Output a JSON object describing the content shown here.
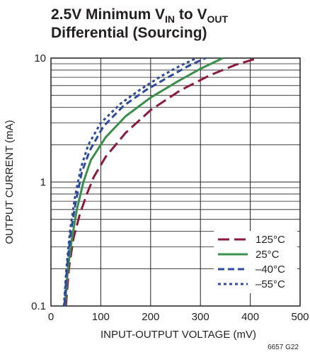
{
  "title": {
    "line1_prefix": "2.5V Minimum V",
    "line1_sub1": "IN",
    "line1_mid": " to V",
    "line1_sub2": "OUT",
    "line2": "Differential (Sourcing)"
  },
  "figure_note": "6657 G22",
  "chart_data": {
    "type": "line",
    "title": "2.5V Minimum VIN to VOUT Differential (Sourcing)",
    "xlabel": "INPUT-OUTPUT VOLTAGE (mV)",
    "ylabel": "OUTPUT CURRENT (mA)",
    "xlim": [
      0,
      500
    ],
    "ylim": [
      0.1,
      10
    ],
    "yscale": "log",
    "grid": true,
    "legend_position": "bottom-right",
    "x_ticks": [
      "0",
      "100",
      "200",
      "300",
      "400",
      "500"
    ],
    "y_ticks": [
      "0.1",
      "1",
      "10"
    ],
    "series": [
      {
        "name": "125°C",
        "color": "#8b1a3c",
        "dash": "long-dash",
        "points": [
          [
            30,
            0.1
          ],
          [
            36,
            0.2
          ],
          [
            45,
            0.35
          ],
          [
            58,
            0.55
          ],
          [
            72,
            0.8
          ],
          [
            86,
            1.1
          ],
          [
            110,
            1.6
          ],
          [
            150,
            2.5
          ],
          [
            200,
            3.8
          ],
          [
            260,
            5.5
          ],
          [
            320,
            7.3
          ],
          [
            370,
            8.8
          ],
          [
            415,
            10
          ]
        ]
      },
      {
        "name": "25°C",
        "color": "#3a8f4a",
        "dash": "solid",
        "points": [
          [
            28,
            0.1
          ],
          [
            34,
            0.2
          ],
          [
            42,
            0.35
          ],
          [
            52,
            0.6
          ],
          [
            65,
            1.0
          ],
          [
            80,
            1.5
          ],
          [
            110,
            2.3
          ],
          [
            150,
            3.4
          ],
          [
            200,
            4.8
          ],
          [
            255,
            6.5
          ],
          [
            300,
            8.2
          ],
          [
            345,
            10
          ]
        ]
      },
      {
        "name": "–40°C",
        "color": "#2c4a9e",
        "dash": "dash",
        "points": [
          [
            27,
            0.1
          ],
          [
            32,
            0.2
          ],
          [
            40,
            0.4
          ],
          [
            50,
            0.7
          ],
          [
            62,
            1.2
          ],
          [
            78,
            1.8
          ],
          [
            105,
            2.8
          ],
          [
            145,
            4.1
          ],
          [
            190,
            5.5
          ],
          [
            235,
            7.0
          ],
          [
            275,
            8.6
          ],
          [
            310,
            10
          ]
        ]
      },
      {
        "name": "–55°C",
        "color": "#2c4a9e",
        "dash": "dotted",
        "points": [
          [
            26,
            0.1
          ],
          [
            31,
            0.2
          ],
          [
            38,
            0.4
          ],
          [
            48,
            0.75
          ],
          [
            60,
            1.3
          ],
          [
            75,
            2.0
          ],
          [
            100,
            3.0
          ],
          [
            140,
            4.3
          ],
          [
            180,
            5.6
          ],
          [
            220,
            7.1
          ],
          [
            260,
            8.7
          ],
          [
            292,
            10
          ]
        ]
      }
    ]
  }
}
